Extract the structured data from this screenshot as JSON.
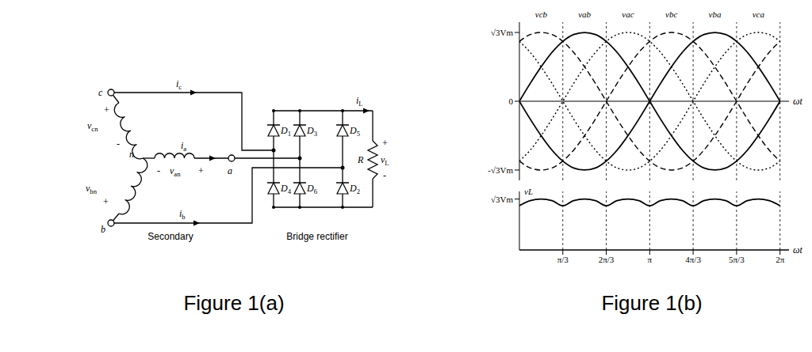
{
  "circuit": {
    "caption": "Figure 1(a)",
    "label": "Secondary",
    "neutral": "n",
    "phases": [
      {
        "terminal": "c",
        "voltage": "vcn",
        "current": "ic",
        "polarity": [
          "+",
          "-"
        ]
      },
      {
        "terminal": "a",
        "voltage": "van",
        "current": "ia",
        "polarity": [
          "-",
          "+"
        ]
      },
      {
        "terminal": "b",
        "voltage": "vbn",
        "current": "ib",
        "polarity": [
          "+"
        ]
      }
    ],
    "rectifier": {
      "label": "Bridge rectifier",
      "top": [
        "D1",
        "D3",
        "D5"
      ],
      "bottom": [
        "D4",
        "D6",
        "D2"
      ]
    },
    "load": {
      "resistor": "R",
      "current": "iL",
      "voltage": "vL",
      "polarity": [
        "+",
        "-"
      ]
    }
  },
  "waveforms": {
    "caption": "Figure 1(b)"
  },
  "chart_data": [
    {
      "type": "line",
      "xlabel": "ωt",
      "x": [
        0,
        0.2618,
        0.5236,
        0.7854,
        1.0472,
        1.309,
        1.5708,
        1.8326,
        2.0944,
        2.3562,
        2.618,
        2.8798,
        3.1416,
        3.4034,
        3.6652,
        3.927,
        4.1888,
        4.4506,
        4.7124,
        4.9742,
        5.236,
        5.4978,
        5.7596,
        6.0214,
        6.2832
      ],
      "xlim": [
        0,
        6.5
      ],
      "xticks": [
        {
          "value": 1.0472,
          "label": "π/3"
        },
        {
          "value": 2.0944,
          "label": "2π/3"
        },
        {
          "value": 3.1416,
          "label": "π"
        },
        {
          "value": 4.1888,
          "label": "4π/3"
        },
        {
          "value": 5.236,
          "label": "5π/3"
        },
        {
          "value": 6.2832,
          "label": "2π"
        }
      ],
      "ylim": [
        -1.15,
        1.15
      ],
      "yticks": [
        {
          "value": -1,
          "label": "-√3Vm"
        },
        0,
        {
          "value": 1,
          "label": "√3Vm"
        }
      ],
      "tick_labels": "y",
      "grid": true,
      "series": [
        {
          "name": "vcb",
          "color": "#000000",
          "line_style": "dashed",
          "values": [
            0.87,
            0.97,
            1,
            0.97,
            0.87,
            0.71,
            0.5,
            0.26,
            0,
            -0.26,
            -0.5,
            -0.71,
            -0.87,
            -0.97,
            -1,
            -0.97,
            -0.87,
            -0.71,
            -0.5,
            -0.26,
            0,
            0.26,
            0.5,
            0.71,
            0.87
          ]
        },
        {
          "name": "vab",
          "color": "#000000",
          "line_style": "solid",
          "values": [
            0,
            0.26,
            0.5,
            0.71,
            0.87,
            0.97,
            1,
            0.97,
            0.87,
            0.71,
            0.5,
            0.26,
            0,
            -0.26,
            -0.5,
            -0.71,
            -0.87,
            -0.97,
            -1,
            -0.97,
            -0.87,
            -0.71,
            -0.5,
            -0.26,
            0
          ]
        },
        {
          "name": "vac",
          "color": "#000000",
          "line_style": "dotted",
          "values": [
            -0.87,
            -0.71,
            -0.5,
            -0.26,
            0,
            0.26,
            0.5,
            0.71,
            0.87,
            0.97,
            1,
            0.97,
            0.87,
            0.71,
            0.5,
            0.26,
            0,
            -0.26,
            -0.5,
            -0.71,
            -0.87,
            -0.97,
            -1,
            -0.97,
            -0.87
          ]
        },
        {
          "name": "vbc",
          "color": "#000000",
          "line_style": "dashed",
          "values": [
            -0.87,
            -0.97,
            -1,
            -0.97,
            -0.87,
            -0.71,
            -0.5,
            -0.26,
            0,
            0.26,
            0.5,
            0.71,
            0.87,
            0.97,
            1,
            0.97,
            0.87,
            0.71,
            0.5,
            0.26,
            0,
            -0.26,
            -0.5,
            -0.71,
            -0.87
          ]
        },
        {
          "name": "vba",
          "color": "#000000",
          "line_style": "solid",
          "values": [
            0,
            -0.26,
            -0.5,
            -0.71,
            -0.87,
            -0.97,
            -1,
            -0.97,
            -0.87,
            -0.71,
            -0.5,
            -0.26,
            0,
            0.26,
            0.5,
            0.71,
            0.87,
            0.97,
            1,
            0.97,
            0.87,
            0.71,
            0.5,
            0.26,
            0
          ]
        },
        {
          "name": "vca",
          "color": "#000000",
          "line_style": "dotted",
          "values": [
            0.87,
            0.71,
            0.5,
            0.26,
            0,
            -0.26,
            -0.5,
            -0.71,
            -0.87,
            -0.97,
            -1,
            -0.97,
            -0.87,
            -0.71,
            -0.5,
            -0.26,
            0,
            0.26,
            0.5,
            0.71,
            0.87,
            0.97,
            1,
            0.97,
            0.87
          ]
        }
      ]
    },
    {
      "type": "line",
      "xlabel": "ωt",
      "x": [
        0,
        0.2618,
        0.5236,
        0.7854,
        1.0472,
        1.309,
        1.5708,
        1.8326,
        2.0944,
        2.3562,
        2.618,
        2.8798,
        3.1416,
        3.4034,
        3.6652,
        3.927,
        4.1888,
        4.4506,
        4.7124,
        4.9742,
        5.236,
        5.4978,
        5.7596,
        6.0214,
        6.2832
      ],
      "xlim": [
        0,
        6.5
      ],
      "xticks": [
        {
          "value": 1.0472,
          "label": "π/3"
        },
        {
          "value": 2.0944,
          "label": "2π/3"
        },
        {
          "value": 3.1416,
          "label": "π"
        },
        {
          "value": 4.1888,
          "label": "4π/3"
        },
        {
          "value": 5.236,
          "label": "5π/3"
        },
        {
          "value": 6.2832,
          "label": "2π"
        }
      ],
      "ylim": [
        0,
        1.15
      ],
      "yticks": [
        {
          "value": 1,
          "label": "√3Vm"
        }
      ],
      "grid": true,
      "series": [
        {
          "name": "vL",
          "color": "#000000",
          "line_style": "solid",
          "values": [
            0.87,
            0.97,
            1,
            0.97,
            0.87,
            0.97,
            1,
            0.97,
            0.87,
            0.97,
            1,
            0.97,
            0.87,
            0.97,
            1,
            0.97,
            0.87,
            0.97,
            1,
            0.97,
            0.87,
            0.97,
            1,
            0.97,
            0.87
          ]
        }
      ]
    }
  ]
}
